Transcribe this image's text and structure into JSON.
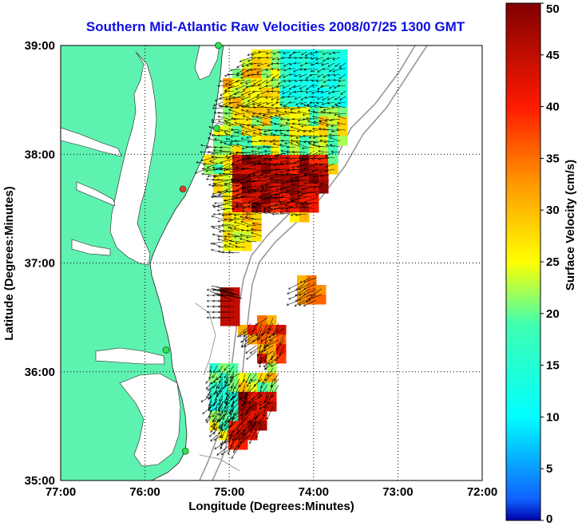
{
  "title": "Southern Mid-Atlantic Raw Velocities 2008/07/25 1300 GMT",
  "map": {
    "xlabel": "Longitude (Degrees:Minutes)",
    "ylabel": "Latitude (Degrees:Minutes)",
    "lon_range": [
      -77,
      -72
    ],
    "lat_range": [
      35,
      39
    ],
    "lon_ticks": [
      "77:00",
      "76:00",
      "75:00",
      "74:00",
      "73:00",
      "72:00"
    ],
    "lat_ticks": [
      "39:00",
      "38:00",
      "37:00",
      "36:00",
      "35:00"
    ],
    "land_color": "#5ef2b0",
    "grid": "dotted",
    "stations": [
      {
        "lon": -75.13,
        "lat": 39.0,
        "color": "#33dd55"
      },
      {
        "lon": -75.15,
        "lat": 38.24,
        "color": "#33dd55"
      },
      {
        "lon": -75.55,
        "lat": 37.68,
        "color": "#ee3322"
      },
      {
        "lon": -75.75,
        "lat": 36.2,
        "color": "#33dd55"
      },
      {
        "lon": -75.52,
        "lat": 35.27,
        "color": "#33dd55"
      }
    ]
  },
  "colorbar": {
    "label": "Surface Velocity (cm/s)",
    "min": 0,
    "max": 50,
    "ticks": [
      "50",
      "45",
      "40",
      "35",
      "30",
      "25",
      "20",
      "15",
      "10",
      "5",
      "0"
    ]
  }
}
